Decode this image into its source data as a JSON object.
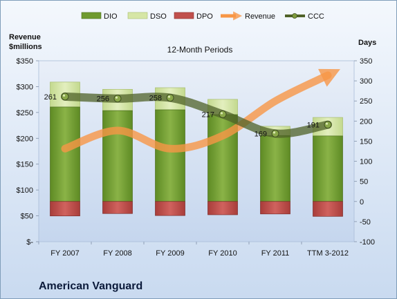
{
  "company": "American Vanguard",
  "chart_data": {
    "type": "bar",
    "title": "12-Month Periods",
    "ylabel_left": "Revenue\n$millions",
    "ylabel_right": "Days",
    "categories": [
      "FY 2007",
      "FY 2008",
      "FY 2009",
      "FY 2010",
      "FY 2011",
      "TTM 3-2012"
    ],
    "y_left": {
      "min": 0,
      "max": 350,
      "ticks": [
        "$-",
        "$50",
        "$100",
        "$150",
        "$200",
        "$250",
        "$300",
        "$350"
      ]
    },
    "y_right": {
      "min": -100,
      "max": 350,
      "ticks": [
        "-100",
        "-50",
        "0",
        "50",
        "100",
        "150",
        "200",
        "250",
        "300",
        "350"
      ]
    },
    "series": [
      {
        "name": "DIO",
        "kind": "bar",
        "axis": "right",
        "values": [
          235,
          226,
          228,
          216,
          164,
          163
        ],
        "color": "#6f9a2f"
      },
      {
        "name": "DSO",
        "kind": "bar",
        "axis": "right",
        "values": [
          62,
          53,
          55,
          38,
          23,
          46
        ],
        "color": "#d6e6a6"
      },
      {
        "name": "DPO",
        "kind": "bar",
        "axis": "right",
        "values": [
          -36,
          -30,
          -35,
          -33,
          -31,
          -37
        ],
        "color": "#c0504d"
      },
      {
        "name": "Revenue",
        "kind": "line",
        "axis": "left",
        "values": [
          180,
          215,
          180,
          205,
          272,
          322
        ],
        "color": "#f79646"
      },
      {
        "name": "CCC",
        "kind": "line",
        "axis": "right",
        "values": [
          261,
          256,
          258,
          217,
          169,
          191
        ],
        "labels": [
          "261",
          "256",
          "258",
          "217",
          "169",
          "191"
        ],
        "color": "#4f6228"
      }
    ],
    "legend_position": "top",
    "grid": false
  }
}
